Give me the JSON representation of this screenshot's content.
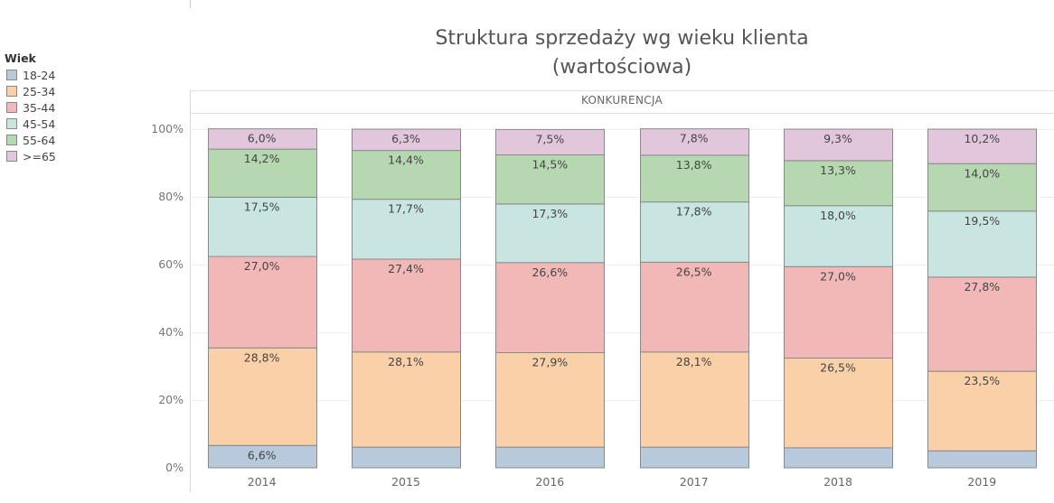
{
  "legend": {
    "title": "Wiek",
    "items": [
      {
        "label": "18-24",
        "color": "#b8c9dc"
      },
      {
        "label": "25-34",
        "color": "#f9d0a7"
      },
      {
        "label": "35-44",
        "color": "#f2b8b8"
      },
      {
        "label": "45-54",
        "color": "#c8e5e1"
      },
      {
        "label": "55-64",
        "color": "#b6d8b0"
      },
      {
        "label": ">=65",
        "color": "#e2c7dc"
      }
    ]
  },
  "chart_data": {
    "type": "bar",
    "stacked": true,
    "title": "Struktura sprzedaży wg wieku klienta",
    "subtitle": "(wartościowa)",
    "panel_header": "KONKURENCJA",
    "categories": [
      "2014",
      "2015",
      "2016",
      "2017",
      "2018",
      "2019"
    ],
    "yticks": [
      "0%",
      "20%",
      "40%",
      "60%",
      "80%",
      "100%"
    ],
    "ylim": [
      0,
      100
    ],
    "series": [
      {
        "name": "18-24",
        "color": "#b8c9dc",
        "values": [
          6.6,
          6.1,
          6.1,
          6.1,
          5.9,
          5.0
        ],
        "labels": [
          "6,6%",
          "",
          "",
          "",
          "",
          ""
        ]
      },
      {
        "name": "25-34",
        "color": "#f9d0a7",
        "values": [
          28.8,
          28.1,
          27.9,
          28.1,
          26.5,
          23.5
        ],
        "labels": [
          "28,8%",
          "28,1%",
          "27,9%",
          "28,1%",
          "26,5%",
          "23,5%"
        ]
      },
      {
        "name": "35-44",
        "color": "#f2b8b8",
        "values": [
          27.0,
          27.4,
          26.6,
          26.5,
          27.0,
          27.8
        ],
        "labels": [
          "27,0%",
          "27,4%",
          "26,6%",
          "26,5%",
          "27,0%",
          "27,8%"
        ]
      },
      {
        "name": "45-54",
        "color": "#c8e5e1",
        "values": [
          17.5,
          17.7,
          17.3,
          17.8,
          18.0,
          19.5
        ],
        "labels": [
          "17,5%",
          "17,7%",
          "17,3%",
          "17,8%",
          "18,0%",
          "19,5%"
        ]
      },
      {
        "name": "55-64",
        "color": "#b6d8b0",
        "values": [
          14.2,
          14.4,
          14.5,
          13.8,
          13.3,
          14.0
        ],
        "labels": [
          "14,2%",
          "14,4%",
          "14,5%",
          "13,8%",
          "13,3%",
          "14,0%"
        ]
      },
      {
        "name": ">=65",
        "color": "#e2c7dc",
        "values": [
          6.0,
          6.3,
          7.5,
          7.8,
          9.3,
          10.2
        ],
        "labels": [
          "6,0%",
          "6,3%",
          "7,5%",
          "7,8%",
          "9,3%",
          "10,2%"
        ]
      }
    ]
  }
}
